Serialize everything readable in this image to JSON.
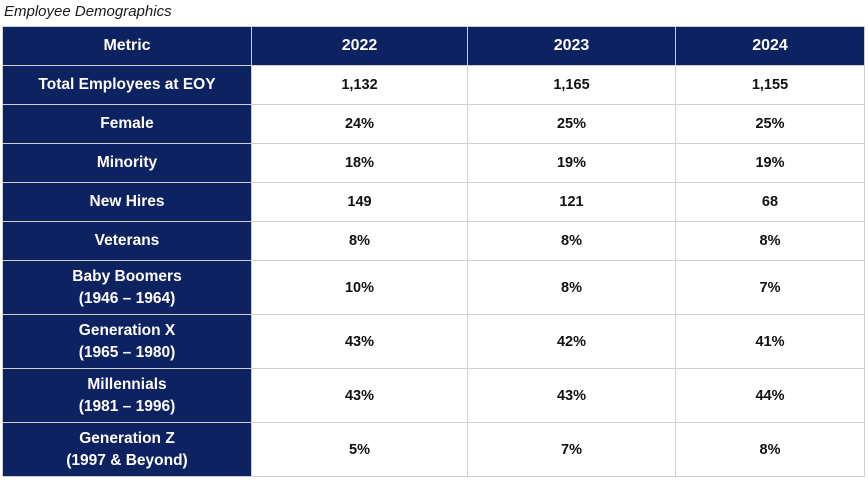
{
  "caption": "Employee Demographics",
  "table": {
    "headers": [
      "Metric",
      "2022",
      "2023",
      "2024"
    ],
    "rows": [
      {
        "metric": [
          "Total Employees at EOY"
        ],
        "values": [
          "1,132",
          "1,165",
          "1,155"
        ]
      },
      {
        "metric": [
          "Female"
        ],
        "values": [
          "24%",
          "25%",
          "25%"
        ]
      },
      {
        "metric": [
          "Minority"
        ],
        "values": [
          "18%",
          "19%",
          "19%"
        ]
      },
      {
        "metric": [
          "New Hires"
        ],
        "values": [
          "149",
          "121",
          "68"
        ]
      },
      {
        "metric": [
          "Veterans"
        ],
        "values": [
          "8%",
          "8%",
          "8%"
        ]
      },
      {
        "metric": [
          "Baby Boomers",
          "(1946 – 1964)"
        ],
        "values": [
          "10%",
          "8%",
          "7%"
        ]
      },
      {
        "metric": [
          "Generation X",
          "(1965 – 1980)"
        ],
        "values": [
          "43%",
          "42%",
          "41%"
        ]
      },
      {
        "metric": [
          "Millennials",
          "(1981 – 1996)"
        ],
        "values": [
          "43%",
          "43%",
          "44%"
        ]
      },
      {
        "metric": [
          "Generation Z",
          "(1997 & Beyond)"
        ],
        "values": [
          "5%",
          "7%",
          "8%"
        ]
      }
    ]
  },
  "colors": {
    "header_background": "#0d2261",
    "header_text": "#ffffff",
    "cell_background": "#ffffff",
    "cell_text": "#111111",
    "border": "#d0d0d0"
  }
}
